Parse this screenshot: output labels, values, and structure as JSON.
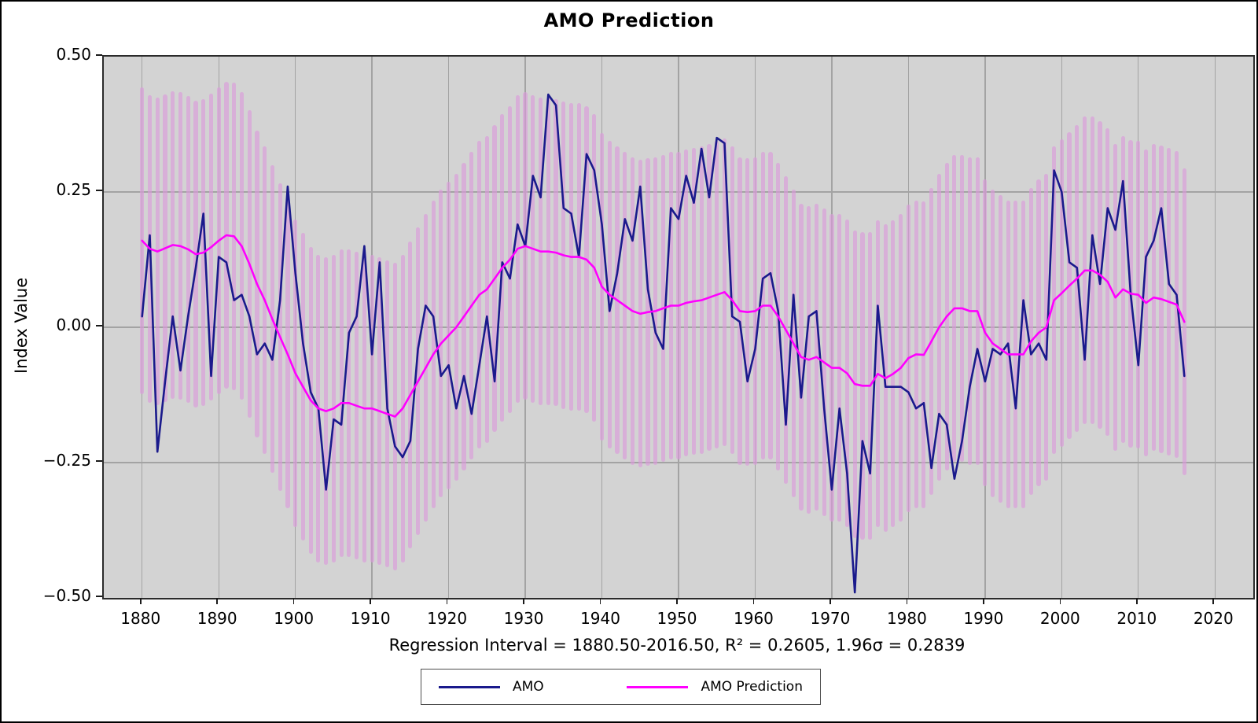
{
  "figure": {
    "title": "AMO Prediction",
    "subtitle": "Regression Interval = 1880.50-2016.50, R² = 0.2605, 1.96σ = 0.2839",
    "y_axis_label": "Index Value"
  },
  "legend": {
    "items": [
      {
        "label": "AMO",
        "color": "#1a1a8c"
      },
      {
        "label": "AMO Prediction",
        "color": "#ff00ff"
      }
    ]
  },
  "colors": {
    "amo_line": "#1a1a8c",
    "prediction_line": "#ff00ff",
    "confidence_bar": "#dda0dd",
    "plot_background": "#d3d3d3",
    "grid": "#a3a3a3"
  },
  "chart_data": {
    "type": "line",
    "title": "AMO Prediction",
    "xlabel": "",
    "ylabel": "Index Value",
    "xlim": [
      1875,
      2025
    ],
    "ylim": [
      -0.5,
      0.5
    ],
    "grid": true,
    "legend_position": "bottom-center",
    "x_ticks": [
      1880,
      1890,
      1900,
      1910,
      1920,
      1930,
      1940,
      1950,
      1960,
      1970,
      1980,
      1990,
      2000,
      2010,
      2020
    ],
    "y_ticks": [
      0.5,
      0.25,
      0,
      -0.25,
      -0.5
    ],
    "y_tick_labels": [
      "0.50",
      "0.25",
      "0.00",
      "−0.25",
      "−0.50"
    ],
    "regression_interval": "1880.50-2016.50",
    "r_squared": 0.2605,
    "sigma_1_96": 0.2839,
    "years": {
      "start": 1880,
      "end": 2016,
      "step": 1
    },
    "confidence_bars": {
      "around_series": "AMO Prediction",
      "half_width": 0.2839,
      "color": "#dda0dd"
    },
    "series": [
      {
        "name": "AMO",
        "color": "#1a1a8c",
        "values": [
          0.02,
          0.17,
          -0.23,
          -0.1,
          0.02,
          -0.08,
          0.02,
          0.11,
          0.21,
          -0.09,
          0.13,
          0.12,
          0.05,
          0.06,
          0.02,
          -0.05,
          -0.03,
          -0.06,
          0.05,
          0.26,
          0.1,
          -0.03,
          -0.12,
          -0.15,
          -0.3,
          -0.17,
          -0.18,
          -0.01,
          0.02,
          0.15,
          -0.05,
          0.12,
          -0.15,
          -0.22,
          -0.24,
          -0.21,
          -0.04,
          0.04,
          0.02,
          -0.09,
          -0.07,
          -0.15,
          -0.09,
          -0.16,
          -0.07,
          0.02,
          -0.1,
          0.12,
          0.09,
          0.19,
          0.15,
          0.28,
          0.24,
          0.43,
          0.41,
          0.22,
          0.21,
          0.13,
          0.32,
          0.29,
          0.19,
          0.03,
          0.1,
          0.2,
          0.16,
          0.26,
          0.07,
          -0.01,
          -0.04,
          0.22,
          0.2,
          0.28,
          0.23,
          0.33,
          0.24,
          0.35,
          0.34,
          0.02,
          0.01,
          -0.1,
          -0.04,
          0.09,
          0.1,
          0.03,
          -0.18,
          0.06,
          -0.13,
          0.02,
          0.03,
          -0.15,
          -0.3,
          -0.15,
          -0.27,
          -0.49,
          -0.21,
          -0.27,
          0.04,
          -0.11,
          -0.11,
          -0.11,
          -0.12,
          -0.15,
          -0.14,
          -0.26,
          -0.16,
          -0.18,
          -0.28,
          -0.21,
          -0.11,
          -0.04,
          -0.1,
          -0.04,
          -0.05,
          -0.03,
          -0.15,
          0.05,
          -0.05,
          -0.03,
          -0.06,
          0.29,
          0.25,
          0.12,
          0.11,
          -0.06,
          0.17,
          0.08,
          0.22,
          0.18,
          0.27,
          0.06,
          -0.07,
          0.13,
          0.16,
          0.22,
          0.08,
          0.06,
          -0.09
        ]
      },
      {
        "name": "AMO Prediction",
        "color": "#ff00ff",
        "values": [
          0.16,
          0.145,
          0.14,
          0.146,
          0.152,
          0.15,
          0.144,
          0.135,
          0.138,
          0.148,
          0.16,
          0.17,
          0.168,
          0.15,
          0.117,
          0.08,
          0.05,
          0.015,
          -0.018,
          -0.05,
          -0.085,
          -0.11,
          -0.135,
          -0.15,
          -0.155,
          -0.15,
          -0.14,
          -0.14,
          -0.145,
          -0.15,
          -0.15,
          -0.155,
          -0.16,
          -0.165,
          -0.15,
          -0.125,
          -0.1,
          -0.075,
          -0.05,
          -0.03,
          -0.015,
          0.0,
          0.02,
          0.04,
          0.06,
          0.07,
          0.09,
          0.11,
          0.125,
          0.145,
          0.15,
          0.145,
          0.14,
          0.14,
          0.138,
          0.133,
          0.13,
          0.13,
          0.125,
          0.11,
          0.075,
          0.06,
          0.05,
          0.04,
          0.03,
          0.025,
          0.028,
          0.03,
          0.035,
          0.04,
          0.04,
          0.045,
          0.048,
          0.05,
          0.055,
          0.06,
          0.065,
          0.05,
          0.03,
          0.028,
          0.03,
          0.04,
          0.04,
          0.02,
          -0.005,
          -0.03,
          -0.055,
          -0.06,
          -0.055,
          -0.065,
          -0.075,
          -0.075,
          -0.085,
          -0.105,
          -0.108,
          -0.108,
          -0.086,
          -0.094,
          -0.086,
          -0.075,
          -0.057,
          -0.05,
          -0.051,
          -0.026,
          0.0,
          0.02,
          0.035,
          0.035,
          0.03,
          0.03,
          -0.01,
          -0.03,
          -0.04,
          -0.05,
          -0.05,
          -0.05,
          -0.026,
          -0.01,
          0.0,
          0.05,
          0.063,
          0.077,
          0.09,
          0.105,
          0.105,
          0.097,
          0.084,
          0.055,
          0.07,
          0.062,
          0.06,
          0.045,
          0.055,
          0.052,
          0.047,
          0.042,
          0.01
        ]
      }
    ]
  }
}
